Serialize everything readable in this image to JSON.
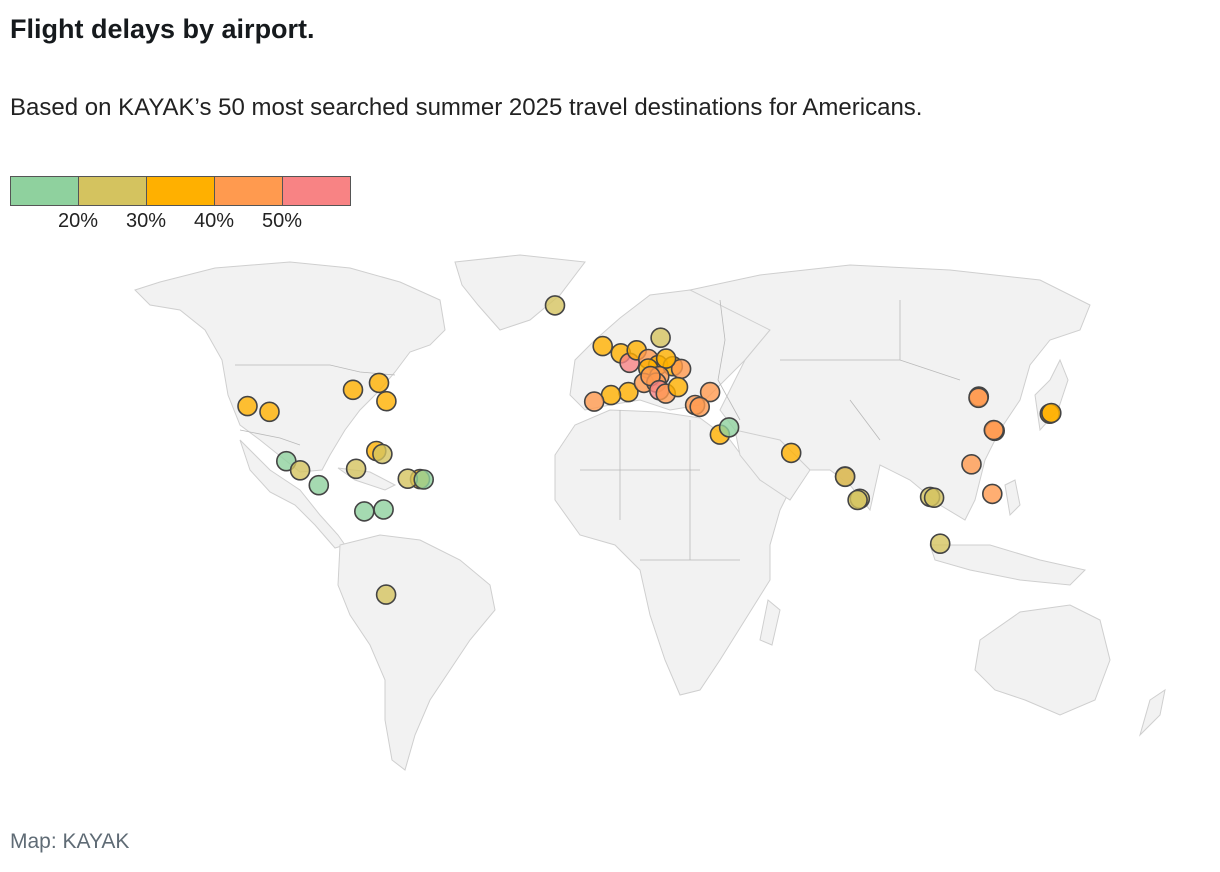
{
  "header": {
    "title": "Flight delays by airport.",
    "subtitle": "Based on KAYAK’s 50 most searched summer 2025 travel destinations for Americans."
  },
  "legend": {
    "bins": [
      {
        "color": "#8fd19e"
      },
      {
        "color": "#d4c35f"
      },
      {
        "color": "#ffb000"
      },
      {
        "color": "#ff9a4f"
      },
      {
        "color": "#f88384"
      }
    ],
    "ticks": [
      "20%",
      "30%",
      "40%",
      "50%"
    ]
  },
  "credit": "Map: KAYAK",
  "map": {
    "points": [
      {
        "lon": -122.4,
        "lat": 37.6,
        "bin": 2
      },
      {
        "lon": -115.2,
        "lat": 36.1,
        "bin": 2
      },
      {
        "lon": -87.9,
        "lat": 41.9,
        "bin": 2
      },
      {
        "lon": -79.4,
        "lat": 43.7,
        "bin": 2
      },
      {
        "lon": -80.3,
        "lat": 25.8,
        "bin": 2
      },
      {
        "lon": -66.0,
        "lat": 18.4,
        "bin": 2
      },
      {
        "lon": -77.0,
        "lat": 38.9,
        "bin": 2
      },
      {
        "lon": -109.7,
        "lat": 23.1,
        "bin": 0
      },
      {
        "lon": -105.2,
        "lat": 20.7,
        "bin": 1
      },
      {
        "lon": -86.9,
        "lat": 21.1,
        "bin": 1
      },
      {
        "lon": -78.3,
        "lat": 25.0,
        "bin": 1
      },
      {
        "lon": -99.1,
        "lat": 16.8,
        "bin": 0
      },
      {
        "lon": -84.2,
        "lat": 9.9,
        "bin": 0
      },
      {
        "lon": -70.0,
        "lat": 18.5,
        "bin": 1
      },
      {
        "lon": -64.8,
        "lat": 18.3,
        "bin": 0
      },
      {
        "lon": -77.9,
        "lat": 10.4,
        "bin": 0
      },
      {
        "lon": -77.1,
        "lat": -12.0,
        "bin": 1
      },
      {
        "lon": -21.9,
        "lat": 64.1,
        "bin": 1
      },
      {
        "lon": -6.3,
        "lat": 53.4,
        "bin": 2
      },
      {
        "lon": -0.4,
        "lat": 51.5,
        "bin": 2
      },
      {
        "lon": 2.5,
        "lat": 49.0,
        "bin": 4
      },
      {
        "lon": 4.8,
        "lat": 52.3,
        "bin": 2
      },
      {
        "lon": 8.6,
        "lat": 50.0,
        "bin": 3
      },
      {
        "lon": 11.8,
        "lat": 48.4,
        "bin": 2
      },
      {
        "lon": 12.6,
        "lat": 55.6,
        "bin": 1
      },
      {
        "lon": 16.6,
        "lat": 48.1,
        "bin": 2
      },
      {
        "lon": 19.3,
        "lat": 47.4,
        "bin": 3
      },
      {
        "lon": 14.4,
        "lat": 50.1,
        "bin": 2
      },
      {
        "lon": 8.6,
        "lat": 47.5,
        "bin": 2
      },
      {
        "lon": 2.1,
        "lat": 41.3,
        "bin": 2
      },
      {
        "lon": -3.6,
        "lat": 40.5,
        "bin": 2
      },
      {
        "lon": -9.1,
        "lat": 38.8,
        "bin": 3
      },
      {
        "lon": 12.2,
        "lat": 45.5,
        "bin": 3
      },
      {
        "lon": 7.2,
        "lat": 43.7,
        "bin": 3
      },
      {
        "lon": 11.2,
        "lat": 43.8,
        "bin": 3
      },
      {
        "lon": 9.3,
        "lat": 45.5,
        "bin": 3
      },
      {
        "lon": 12.2,
        "lat": 41.8,
        "bin": 4
      },
      {
        "lon": 14.3,
        "lat": 40.9,
        "bin": 3
      },
      {
        "lon": 18.3,
        "lat": 42.6,
        "bin": 2
      },
      {
        "lon": 23.9,
        "lat": 37.9,
        "bin": 3
      },
      {
        "lon": 28.8,
        "lat": 41.3,
        "bin": 3
      },
      {
        "lon": 25.4,
        "lat": 37.4,
        "bin": 3
      },
      {
        "lon": 32.0,
        "lat": 30.1,
        "bin": 2
      },
      {
        "lon": 35.0,
        "lat": 32.0,
        "bin": 0
      },
      {
        "lon": 55.3,
        "lat": 25.3,
        "bin": 2
      },
      {
        "lon": 72.9,
        "lat": 19.1,
        "bin": 3
      },
      {
        "lon": 77.7,
        "lat": 13.2,
        "bin": 1
      },
      {
        "lon": 100.7,
        "lat": 13.7,
        "bin": 1
      },
      {
        "lon": 104.0,
        "lat": 1.4,
        "bin": 1
      },
      {
        "lon": 116.6,
        "lat": 40.1,
        "bin": 3
      },
      {
        "lon": 121.8,
        "lat": 31.1,
        "bin": 3
      },
      {
        "lon": 114.2,
        "lat": 22.3,
        "bin": 3
      },
      {
        "lon": 121.0,
        "lat": 14.5,
        "bin": 3
      },
      {
        "lon": 139.8,
        "lat": 35.6,
        "bin": 2
      },
      {
        "lon": 140.3,
        "lat": 35.8,
        "bin": 2
      },
      {
        "lon": 72.9,
        "lat": 19.0,
        "bin": 1
      },
      {
        "lon": 77.0,
        "lat": 12.9,
        "bin": 1
      },
      {
        "lon": 102.0,
        "lat": 13.5,
        "bin": 1
      },
      {
        "lon": 116.5,
        "lat": 39.8,
        "bin": 3
      },
      {
        "lon": 121.5,
        "lat": 31.3,
        "bin": 3
      }
    ]
  }
}
